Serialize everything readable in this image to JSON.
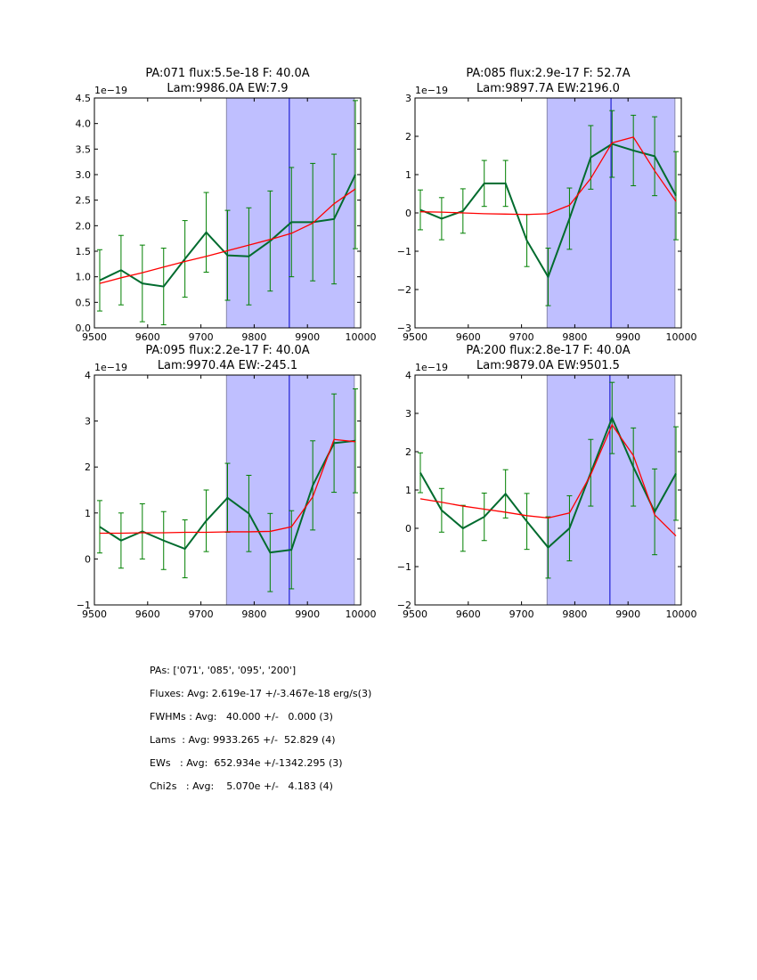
{
  "chart_data": [
    {
      "type": "line",
      "title": [
        "PA:071 flux:5.5e-18 F: 40.0A",
        "Lam:9986.0A EW:7.9"
      ],
      "offset_label": "1e−19",
      "xlim": [
        9500,
        10000
      ],
      "ylim": [
        0,
        4.5
      ],
      "yticks": [
        0,
        0.5,
        1,
        1.5,
        2,
        2.5,
        3,
        3.5,
        4,
        4.5
      ],
      "ytick_labels": [
        "0.0",
        "0.5",
        "1.0",
        "1.5",
        "2.0",
        "2.5",
        "3.0",
        "3.5",
        "4.0",
        "4.5"
      ],
      "xticks": [
        9500,
        9600,
        9700,
        9800,
        9900,
        10000
      ],
      "xtick_labels": [
        "9500",
        "9600",
        "9700",
        "9800",
        "9900",
        "10000"
      ],
      "shade": [
        9748,
        9988
      ],
      "vline": 9866,
      "x": [
        9510,
        9550,
        9590,
        9630,
        9670,
        9710,
        9750,
        9790,
        9830,
        9870,
        9910,
        9950,
        9990
      ],
      "data": [
        0.93,
        1.13,
        0.87,
        0.81,
        1.35,
        1.87,
        1.42,
        1.4,
        1.7,
        2.07,
        2.07,
        2.13,
        3.0
      ],
      "err": [
        0.6,
        0.68,
        0.75,
        0.75,
        0.75,
        0.78,
        0.88,
        0.95,
        0.98,
        1.07,
        1.15,
        1.27,
        1.45
      ],
      "model": [
        0.87,
        0.98,
        1.08,
        1.19,
        1.3,
        1.4,
        1.51,
        1.62,
        1.73,
        1.85,
        2.05,
        2.43,
        2.72
      ]
    },
    {
      "type": "line",
      "title": [
        "PA:085 flux:2.9e-17 F: 52.7A",
        "Lam:9897.7A EW:2196.0"
      ],
      "offset_label": "1e−19",
      "xlim": [
        9500,
        10000
      ],
      "ylim": [
        -3,
        3
      ],
      "yticks": [
        -3,
        -2,
        -1,
        0,
        1,
        2,
        3
      ],
      "ytick_labels": [
        "−3",
        "−2",
        "−1",
        "0",
        "1",
        "2",
        "3"
      ],
      "xticks": [
        9500,
        9600,
        9700,
        9800,
        9900,
        10000
      ],
      "xtick_labels": [
        "9500",
        "9600",
        "9700",
        "9800",
        "9900",
        "10000"
      ],
      "shade": [
        9748,
        9988
      ],
      "vline": 9868,
      "x": [
        9510,
        9550,
        9590,
        9630,
        9670,
        9710,
        9750,
        9790,
        9830,
        9870,
        9910,
        9950,
        9990
      ],
      "data": [
        0.08,
        -0.15,
        0.05,
        0.77,
        0.77,
        -0.72,
        -1.67,
        -0.15,
        1.45,
        1.8,
        1.63,
        1.48,
        0.45
      ],
      "err": [
        0.52,
        0.55,
        0.58,
        0.6,
        0.6,
        0.68,
        0.75,
        0.8,
        0.83,
        0.87,
        0.92,
        1.03,
        1.15
      ],
      "model": [
        0.03,
        0.02,
        0.0,
        -0.02,
        -0.03,
        -0.04,
        -0.02,
        0.2,
        0.9,
        1.83,
        1.98,
        1.1,
        0.3
      ]
    },
    {
      "type": "line",
      "title": [
        "PA:095 flux:2.2e-17 F: 40.0A",
        "Lam:9970.4A EW:-245.1"
      ],
      "offset_label": "1e−19",
      "xlim": [
        9500,
        10000
      ],
      "ylim": [
        -1,
        4
      ],
      "yticks": [
        -1,
        0,
        1,
        2,
        3,
        4
      ],
      "ytick_labels": [
        "−1",
        "0",
        "1",
        "2",
        "3",
        "4"
      ],
      "xticks": [
        9500,
        9600,
        9700,
        9800,
        9900,
        10000
      ],
      "xtick_labels": [
        "9500",
        "9600",
        "9700",
        "9800",
        "9900",
        "10000"
      ],
      "shade": [
        9748,
        9988
      ],
      "vline": 9866,
      "x": [
        9510,
        9550,
        9590,
        9630,
        9670,
        9710,
        9750,
        9790,
        9830,
        9870,
        9910,
        9950,
        9990
      ],
      "data": [
        0.7,
        0.4,
        0.6,
        0.4,
        0.22,
        0.83,
        1.33,
        0.99,
        0.14,
        0.2,
        1.6,
        2.52,
        2.57
      ],
      "err": [
        0.57,
        0.6,
        0.6,
        0.63,
        0.63,
        0.67,
        0.75,
        0.83,
        0.85,
        0.85,
        0.97,
        1.07,
        1.13
      ],
      "model": [
        0.56,
        0.56,
        0.57,
        0.57,
        0.58,
        0.58,
        0.59,
        0.59,
        0.6,
        0.7,
        1.35,
        2.6,
        2.55
      ]
    },
    {
      "type": "line",
      "title": [
        "PA:200 flux:2.8e-17 F: 40.0A",
        "Lam:9879.0A EW:9501.5"
      ],
      "offset_label": "1e−19",
      "xlim": [
        9500,
        10000
      ],
      "ylim": [
        -2,
        4
      ],
      "yticks": [
        -2,
        -1,
        0,
        1,
        2,
        3,
        4
      ],
      "ytick_labels": [
        "−2",
        "−1",
        "0",
        "1",
        "2",
        "3",
        "4"
      ],
      "xticks": [
        9500,
        9600,
        9700,
        9800,
        9900,
        10000
      ],
      "xtick_labels": [
        "9500",
        "9600",
        "9700",
        "9800",
        "9900",
        "10000"
      ],
      "shade": [
        9748,
        9988
      ],
      "vline": 9866,
      "x": [
        9510,
        9550,
        9590,
        9630,
        9670,
        9710,
        9750,
        9790,
        9830,
        9870,
        9910,
        9950,
        9990
      ],
      "data": [
        1.45,
        0.47,
        0.0,
        0.3,
        0.9,
        0.18,
        -0.5,
        0.0,
        1.45,
        2.88,
        1.6,
        0.43,
        1.43
      ],
      "err": [
        0.52,
        0.57,
        0.6,
        0.62,
        0.63,
        0.73,
        0.8,
        0.85,
        0.87,
        0.93,
        1.02,
        1.12,
        1.22
      ],
      "model": [
        0.77,
        0.68,
        0.58,
        0.5,
        0.42,
        0.33,
        0.27,
        0.4,
        1.4,
        2.7,
        1.9,
        0.35,
        -0.2
      ]
    }
  ],
  "colors": {
    "data": "#006b2e",
    "err": "#008000",
    "model": "#ff0000",
    "shade": "#bfbfff",
    "vline": "#0000cc"
  },
  "stats": [
    "PAs: ['071', '085', '095', '200']",
    "Fluxes: Avg: 2.619e-17 +/-3.467e-18 erg/s(3)",
    "FWHMs : Avg:   40.000 +/-   0.000 (3)",
    "Lams  : Avg: 9933.265 +/-  52.829 (4)",
    "EWs   : Avg:  652.934e +/-1342.295 (3)",
    "Chi2s   : Avg:    5.070e +/-   4.183 (4)"
  ]
}
